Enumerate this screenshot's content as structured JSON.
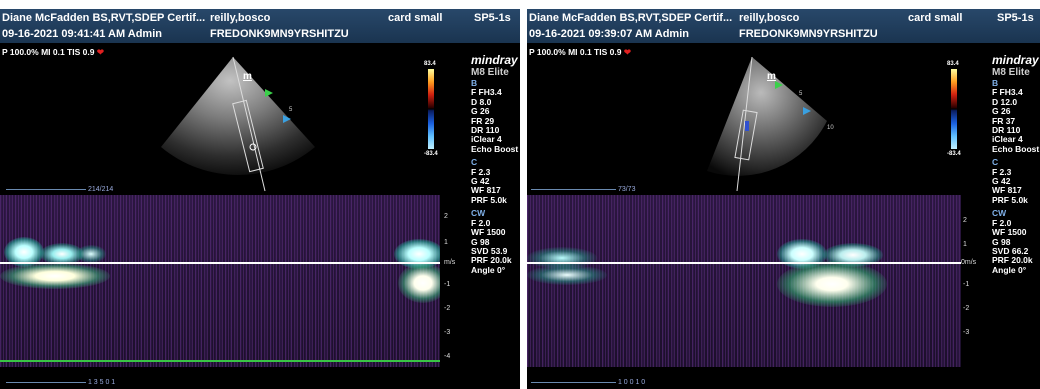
{
  "left": {
    "header": {
      "operator": "Diane McFadden BS,RVT,SDEP Certif...",
      "datetime": "09-16-2021 09:41:41 AM Admin",
      "patient": "reilly,bosco",
      "patient_id": "FREDONK9MN9YRSHITZU",
      "exam": "card small",
      "probe": "SP5-1s"
    },
    "overlay": {
      "text": "P 100.0%  MI 0.1  TIS 0.9"
    },
    "brand": "mindray",
    "model": "M8 Elite",
    "b_params": {
      "label": "B",
      "lines": [
        "F FH3.4",
        "D 8.0",
        "G 26",
        "FR 29",
        "DR 110",
        "iClear 4",
        "Echo Boost"
      ]
    },
    "c_params": {
      "label": "C",
      "lines": [
        "F 2.3",
        "G 42",
        "WF 817",
        "PRF 5.0k"
      ]
    },
    "cw_params": {
      "label": "CW",
      "lines": [
        "F 2.0",
        "WF 1500",
        "G 98",
        "SVD 53.9",
        "PRF 20.0k",
        "Angle 0°"
      ]
    },
    "colorbar": {
      "top": "83.4",
      "bottom": "-83.4"
    },
    "counter": "214/214",
    "scale_unit": "m/s",
    "ticks": [
      "2",
      "1",
      "0",
      "-1",
      "-2",
      "-3",
      "-4"
    ],
    "depth_mark": "m",
    "depth_labels": [
      "5"
    ],
    "bottom_counter": "1 3 5 0 1"
  },
  "right": {
    "header": {
      "operator": "Diane McFadden BS,RVT,SDEP Certif...",
      "datetime": "09-16-2021 09:39:07 AM Admin",
      "patient": "reilly,bosco",
      "patient_id": "FREDONK9MN9YRSHITZU",
      "exam": "card small",
      "probe": "SP5-1s"
    },
    "overlay": {
      "text": "P 100.0%  MI 0.1  TIS 0.9"
    },
    "brand": "mindray",
    "model": "M8 Elite",
    "b_params": {
      "label": "B",
      "lines": [
        "F FH3.4",
        "D 12.0",
        "G 26",
        "FR 37",
        "DR 110",
        "iClear 4",
        "Echo Boost"
      ]
    },
    "c_params": {
      "label": "C",
      "lines": [
        "F 2.3",
        "G 42",
        "WF 817",
        "PRF 5.0k"
      ]
    },
    "cw_params": {
      "label": "CW",
      "lines": [
        "F 2.0",
        "WF 1500",
        "G 98",
        "SVD 66.2",
        "PRF 20.0k",
        "Angle 0°"
      ]
    },
    "colorbar": {
      "top": "83.4",
      "bottom": "-83.4"
    },
    "counter": "73/73",
    "scale_unit": "0m/s",
    "ticks": [
      "2",
      "1",
      "0",
      "-1",
      "-2",
      "-3"
    ],
    "depth_mark": "m",
    "depth_labels": [
      "5",
      "10"
    ],
    "bottom_counter": "1 0 0 1 0"
  },
  "colors": {
    "header_bg": "#1f3b5a",
    "baseline": "#ffffff",
    "green_line": "#39c445",
    "heart": "#e02020"
  }
}
